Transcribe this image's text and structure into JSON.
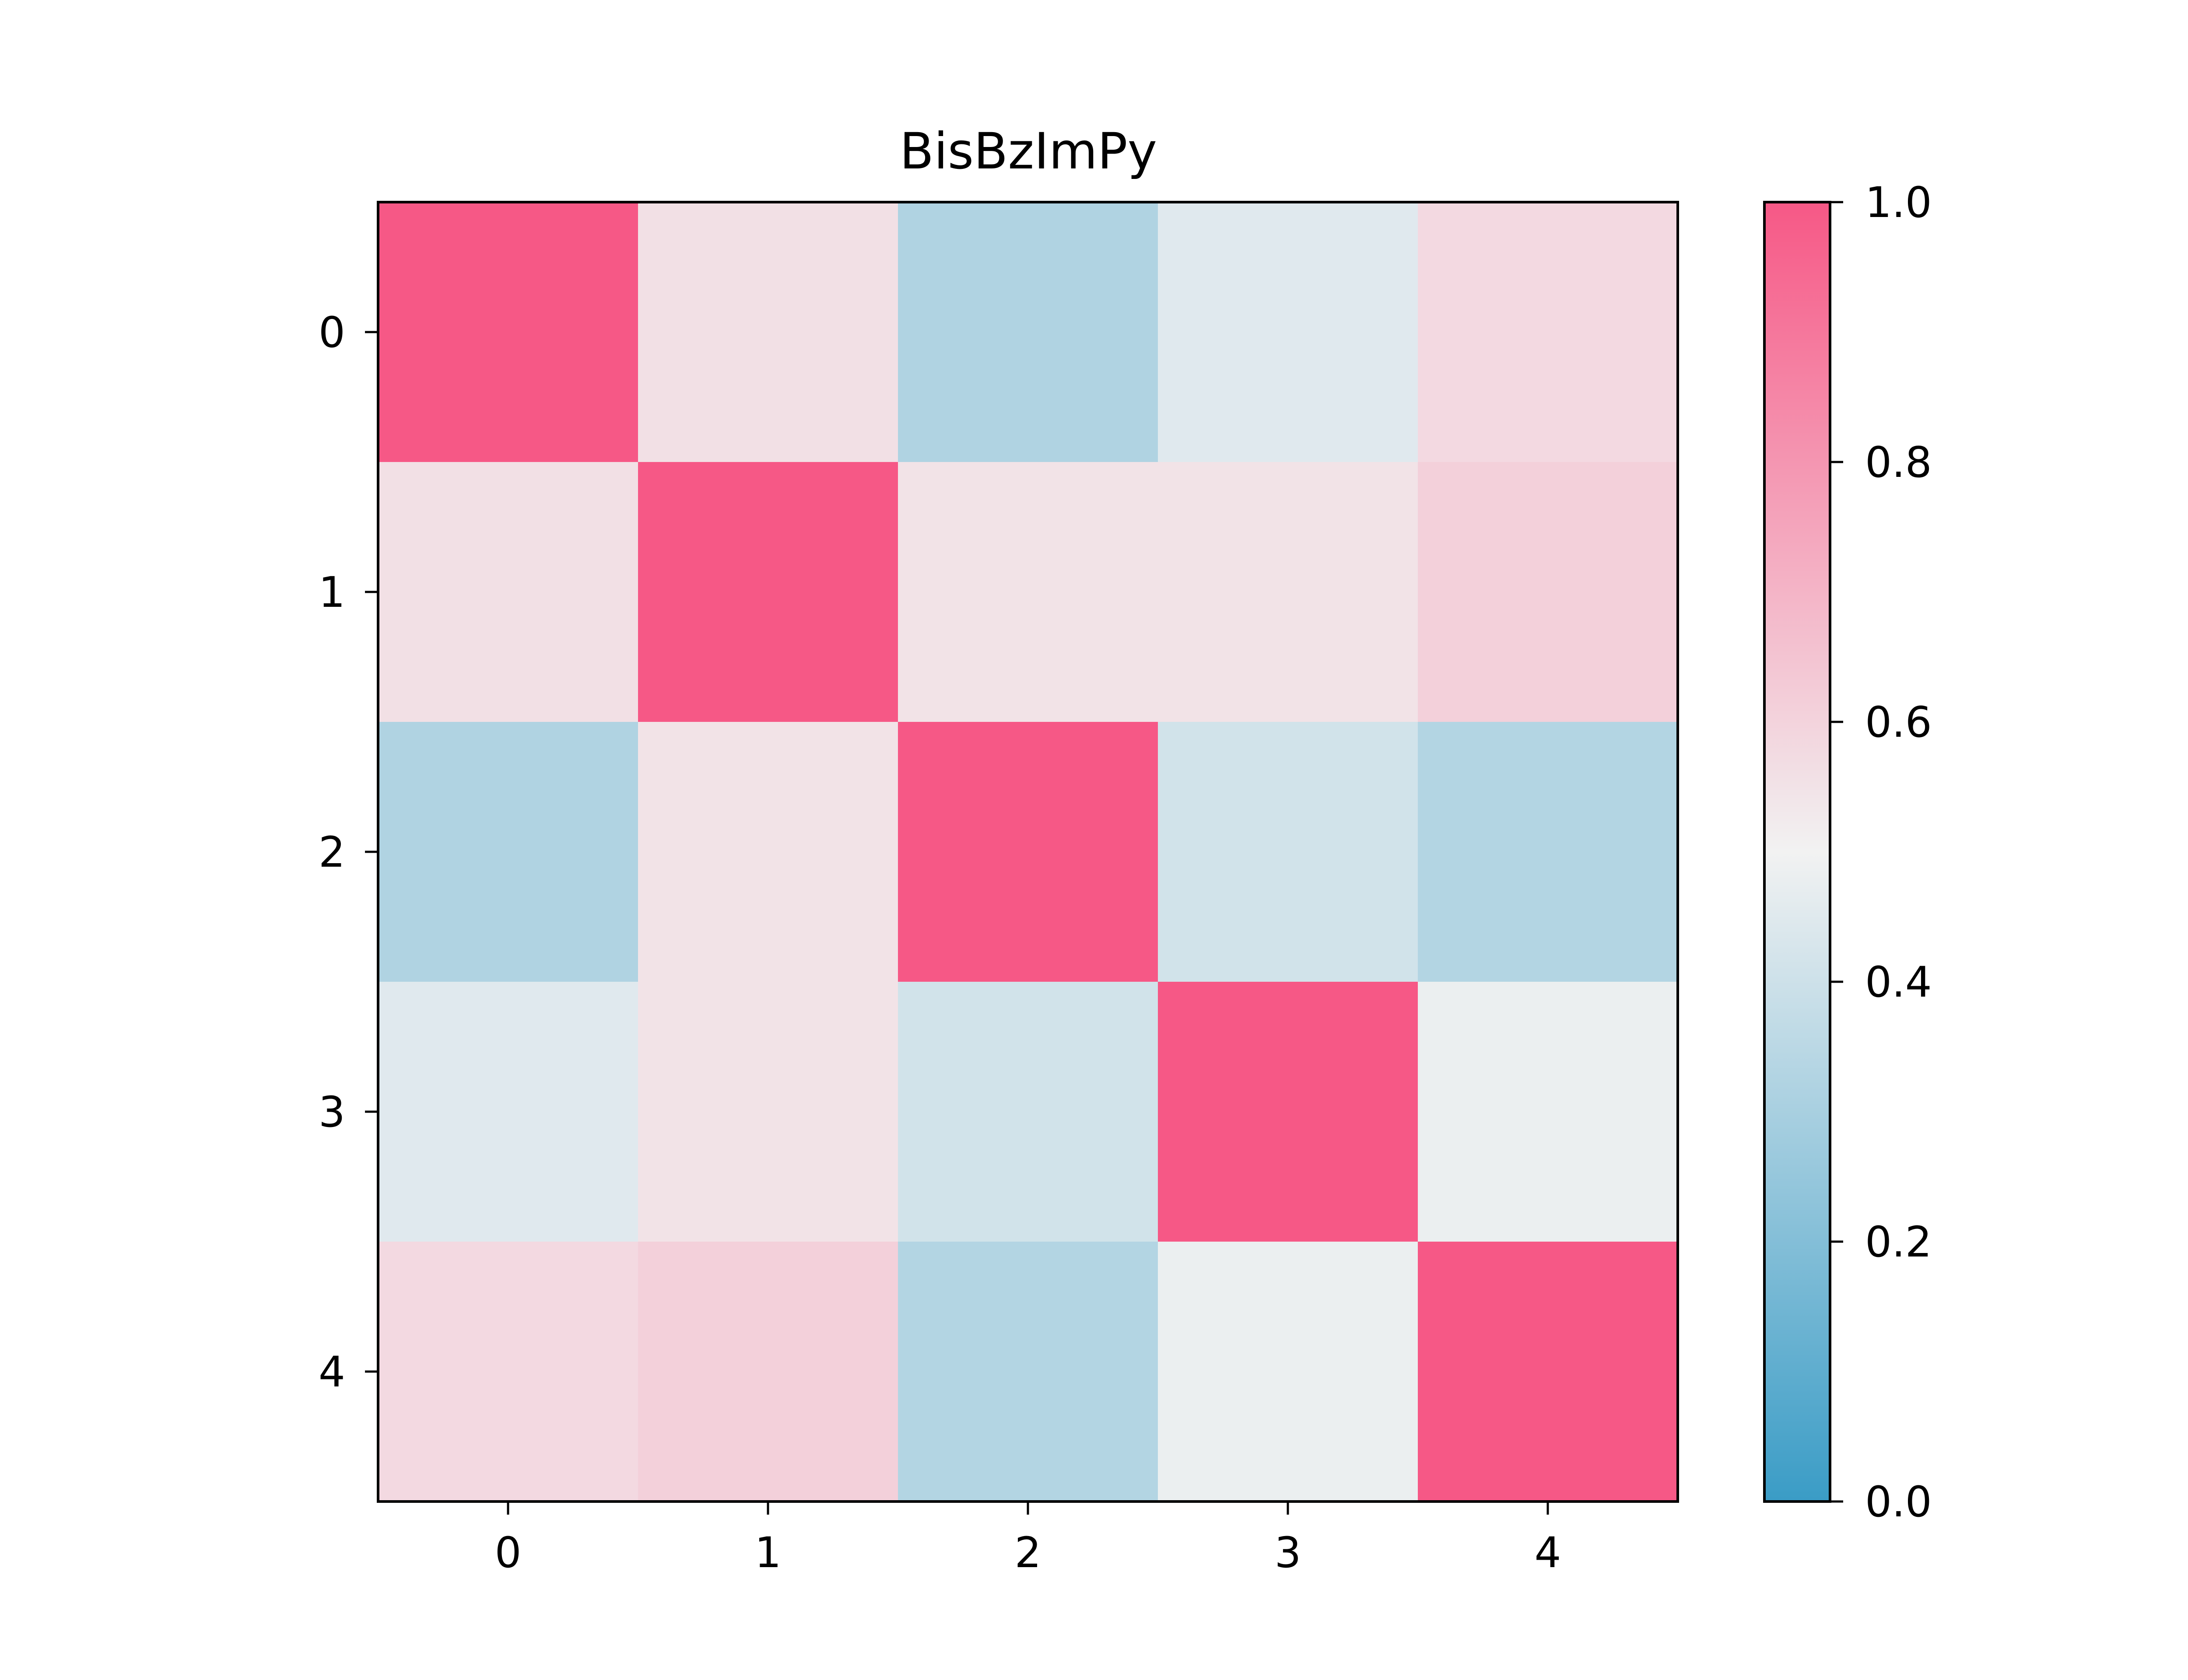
{
  "chart_data": {
    "type": "heatmap",
    "title": "BisBzImPy",
    "x_categories": [
      "0",
      "1",
      "2",
      "3",
      "4"
    ],
    "y_categories": [
      "0",
      "1",
      "2",
      "3",
      "4"
    ],
    "values": [
      [
        1.0,
        0.56,
        0.32,
        0.45,
        0.58
      ],
      [
        0.56,
        1.0,
        0.55,
        0.55,
        0.61
      ],
      [
        0.32,
        0.55,
        1.0,
        0.41,
        0.33
      ],
      [
        0.45,
        0.55,
        0.41,
        1.0,
        0.48
      ],
      [
        0.58,
        0.61,
        0.33,
        0.48,
        1.0
      ]
    ],
    "colorbar": {
      "min": 0.0,
      "max": 1.0,
      "ticks": [
        "0.0",
        "0.2",
        "0.4",
        "0.6",
        "0.8",
        "1.0"
      ],
      "colors": {
        "low": "#3a9cc6",
        "mid": "#f2f2f2",
        "high": "#f65886"
      }
    }
  }
}
